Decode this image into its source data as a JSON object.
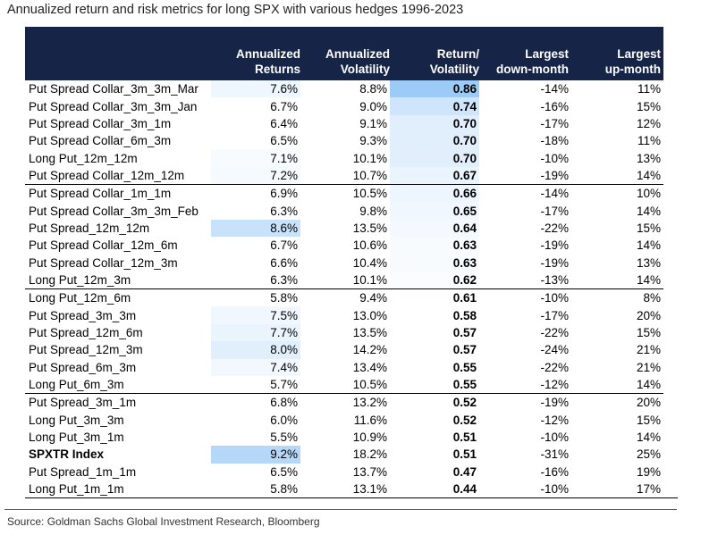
{
  "chart_data": {
    "type": "table",
    "title": "Annualized return and risk metrics for long SPX with various hedges 1996-2023",
    "columns": [
      {
        "key": "name",
        "label": [
          "",
          ""
        ]
      },
      {
        "key": "ret",
        "label": [
          "Annualized",
          "Returns"
        ]
      },
      {
        "key": "vol",
        "label": [
          "Annualized",
          "Volatility"
        ]
      },
      {
        "key": "rv",
        "label": [
          "Return/",
          "Volatility"
        ]
      },
      {
        "key": "down",
        "label": [
          "Largest",
          "down-month"
        ]
      },
      {
        "key": "up",
        "label": [
          "Largest",
          "up-month"
        ]
      }
    ],
    "rows": [
      {
        "name": "Put Spread Collar_3m_3m_Mar",
        "ret": "7.6%",
        "vol": "8.8%",
        "rv": "0.86",
        "down": "-14%",
        "up": "11%",
        "ret_shade": 0.17,
        "rv_shade": 1.0
      },
      {
        "name": "Put Spread Collar_3m_3m_Jan",
        "ret": "6.7%",
        "vol": "9.0%",
        "rv": "0.74",
        "down": "-16%",
        "up": "15%",
        "ret_shade": 0,
        "rv_shade": 0.5
      },
      {
        "name": "Put Spread Collar_3m_1m",
        "ret": "6.4%",
        "vol": "9.1%",
        "rv": "0.70",
        "down": "-17%",
        "up": "12%",
        "ret_shade": 0,
        "rv_shade": 0.3
      },
      {
        "name": "Put Spread Collar_6m_3m",
        "ret": "6.5%",
        "vol": "9.3%",
        "rv": "0.70",
        "down": "-18%",
        "up": "11%",
        "ret_shade": 0,
        "rv_shade": 0.3
      },
      {
        "name": "Long Put_12m_12m",
        "ret": "7.1%",
        "vol": "10.1%",
        "rv": "0.70",
        "down": "-10%",
        "up": "13%",
        "ret_shade": 0.08,
        "rv_shade": 0.3
      },
      {
        "name": "Put Spread Collar_12m_12m",
        "ret": "7.2%",
        "vol": "10.7%",
        "rv": "0.67",
        "down": "-19%",
        "up": "14%",
        "ret_shade": 0.1,
        "rv_shade": 0.22
      },
      {
        "name": "Put Spread Collar_1m_1m",
        "ret": "6.9%",
        "vol": "10.5%",
        "rv": "0.66",
        "down": "-14%",
        "up": "10%",
        "ret_shade": 0,
        "rv_shade": 0.18,
        "sep": true
      },
      {
        "name": "Put Spread Collar_3m_3m_Feb",
        "ret": "6.3%",
        "vol": "9.8%",
        "rv": "0.65",
        "down": "-17%",
        "up": "14%",
        "ret_shade": 0,
        "rv_shade": 0.15
      },
      {
        "name": "Put Spread_12m_12m",
        "ret": "8.6%",
        "vol": "13.5%",
        "rv": "0.64",
        "down": "-22%",
        "up": "15%",
        "ret_shade": 0.55,
        "rv_shade": 0.12
      },
      {
        "name": "Put Spread Collar_12m_6m",
        "ret": "6.7%",
        "vol": "10.6%",
        "rv": "0.63",
        "down": "-19%",
        "up": "14%",
        "ret_shade": 0,
        "rv_shade": 0.08
      },
      {
        "name": "Put Spread Collar_12m_3m",
        "ret": "6.6%",
        "vol": "10.4%",
        "rv": "0.63",
        "down": "-19%",
        "up": "13%",
        "ret_shade": 0,
        "rv_shade": 0.08
      },
      {
        "name": "Long Put_12m_3m",
        "ret": "6.3%",
        "vol": "10.1%",
        "rv": "0.62",
        "down": "-13%",
        "up": "14%",
        "ret_shade": 0,
        "rv_shade": 0.05
      },
      {
        "name": "Long Put_12m_6m",
        "ret": "5.8%",
        "vol": "9.4%",
        "rv": "0.61",
        "down": "-10%",
        "up": "8%",
        "ret_shade": 0,
        "rv_shade": 0,
        "sep": true
      },
      {
        "name": "Put Spread_3m_3m",
        "ret": "7.5%",
        "vol": "13.0%",
        "rv": "0.58",
        "down": "-17%",
        "up": "20%",
        "ret_shade": 0.15,
        "rv_shade": 0
      },
      {
        "name": "Put Spread_12m_6m",
        "ret": "7.7%",
        "vol": "13.5%",
        "rv": "0.57",
        "down": "-22%",
        "up": "15%",
        "ret_shade": 0.22,
        "rv_shade": 0
      },
      {
        "name": "Put Spread_12m_3m",
        "ret": "8.0%",
        "vol": "14.2%",
        "rv": "0.57",
        "down": "-24%",
        "up": "21%",
        "ret_shade": 0.3,
        "rv_shade": 0
      },
      {
        "name": "Put Spread_6m_3m",
        "ret": "7.4%",
        "vol": "13.4%",
        "rv": "0.55",
        "down": "-22%",
        "up": "21%",
        "ret_shade": 0.13,
        "rv_shade": 0
      },
      {
        "name": "Long Put_6m_3m",
        "ret": "5.7%",
        "vol": "10.5%",
        "rv": "0.55",
        "down": "-12%",
        "up": "14%",
        "ret_shade": 0,
        "rv_shade": 0
      },
      {
        "name": "Put Spread_3m_1m",
        "ret": "6.8%",
        "vol": "13.2%",
        "rv": "0.52",
        "down": "-19%",
        "up": "20%",
        "ret_shade": 0,
        "rv_shade": 0,
        "sep": true
      },
      {
        "name": "Long Put_3m_3m",
        "ret": "6.0%",
        "vol": "11.6%",
        "rv": "0.52",
        "down": "-12%",
        "up": "15%",
        "ret_shade": 0,
        "rv_shade": 0
      },
      {
        "name": "Long Put_3m_1m",
        "ret": "5.5%",
        "vol": "10.9%",
        "rv": "0.51",
        "down": "-10%",
        "up": "14%",
        "ret_shade": 0,
        "rv_shade": 0
      },
      {
        "name": "SPXTR Index",
        "ret": "9.2%",
        "vol": "18.2%",
        "rv": "0.51",
        "down": "-31%",
        "up": "25%",
        "ret_shade": 0.75,
        "rv_shade": 0,
        "bold": true
      },
      {
        "name": "Put Spread_1m_1m",
        "ret": "6.5%",
        "vol": "13.7%",
        "rv": "0.47",
        "down": "-16%",
        "up": "19%",
        "ret_shade": 0,
        "rv_shade": 0
      },
      {
        "name": "Long Put_1m_1m",
        "ret": "5.8%",
        "vol": "13.1%",
        "rv": "0.44",
        "down": "-10%",
        "up": "17%",
        "ret_shade": 0,
        "rv_shade": 0
      }
    ],
    "colors": {
      "header_bg": "#152447",
      "shade_max": "#9ccbf7",
      "shade_min": "#ffffff"
    }
  },
  "source": "Source: Goldman Sachs Global Investment Research, Bloomberg"
}
